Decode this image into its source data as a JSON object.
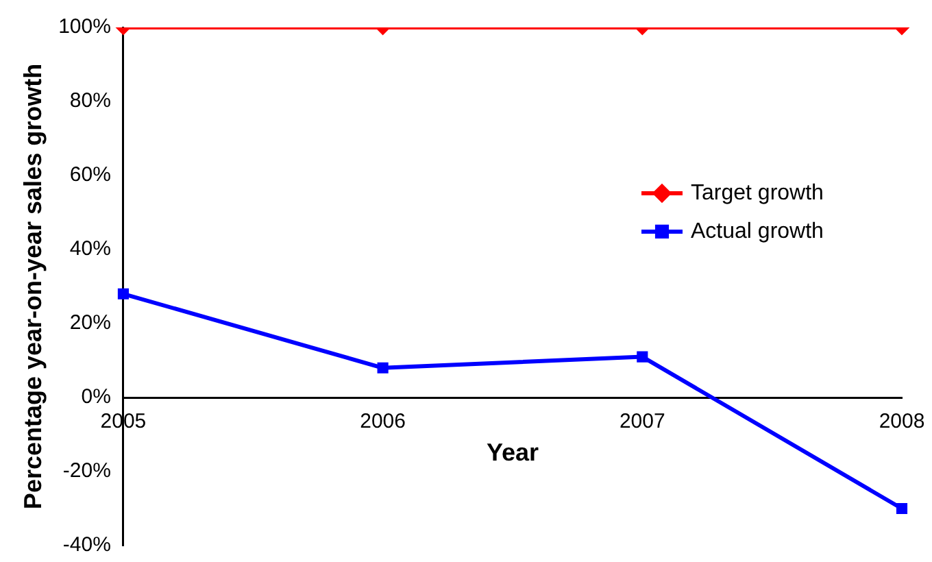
{
  "chart_data": {
    "type": "line",
    "xlabel": "Year",
    "ylabel": "Percentage year-on-year sales growth",
    "categories": [
      "2005",
      "2006",
      "2007",
      "2008"
    ],
    "series": [
      {
        "name": "Target growth",
        "color": "#ff0000",
        "marker": "diamond",
        "values": [
          100,
          100,
          100,
          100
        ]
      },
      {
        "name": "Actual growth",
        "color": "#0000ff",
        "marker": "square",
        "values": [
          28,
          8,
          11,
          -30
        ]
      }
    ],
    "ylim": [
      -40,
      100
    ],
    "yticks": [
      {
        "value": -40,
        "label": "-40%"
      },
      {
        "value": -20,
        "label": "-20%"
      },
      {
        "value": 0,
        "label": "0%"
      },
      {
        "value": 20,
        "label": "20%"
      },
      {
        "value": 40,
        "label": "40%"
      },
      {
        "value": 60,
        "label": "60%"
      },
      {
        "value": 80,
        "label": "80%"
      },
      {
        "value": 100,
        "label": "100%"
      }
    ],
    "grid": false,
    "legend": "right"
  }
}
